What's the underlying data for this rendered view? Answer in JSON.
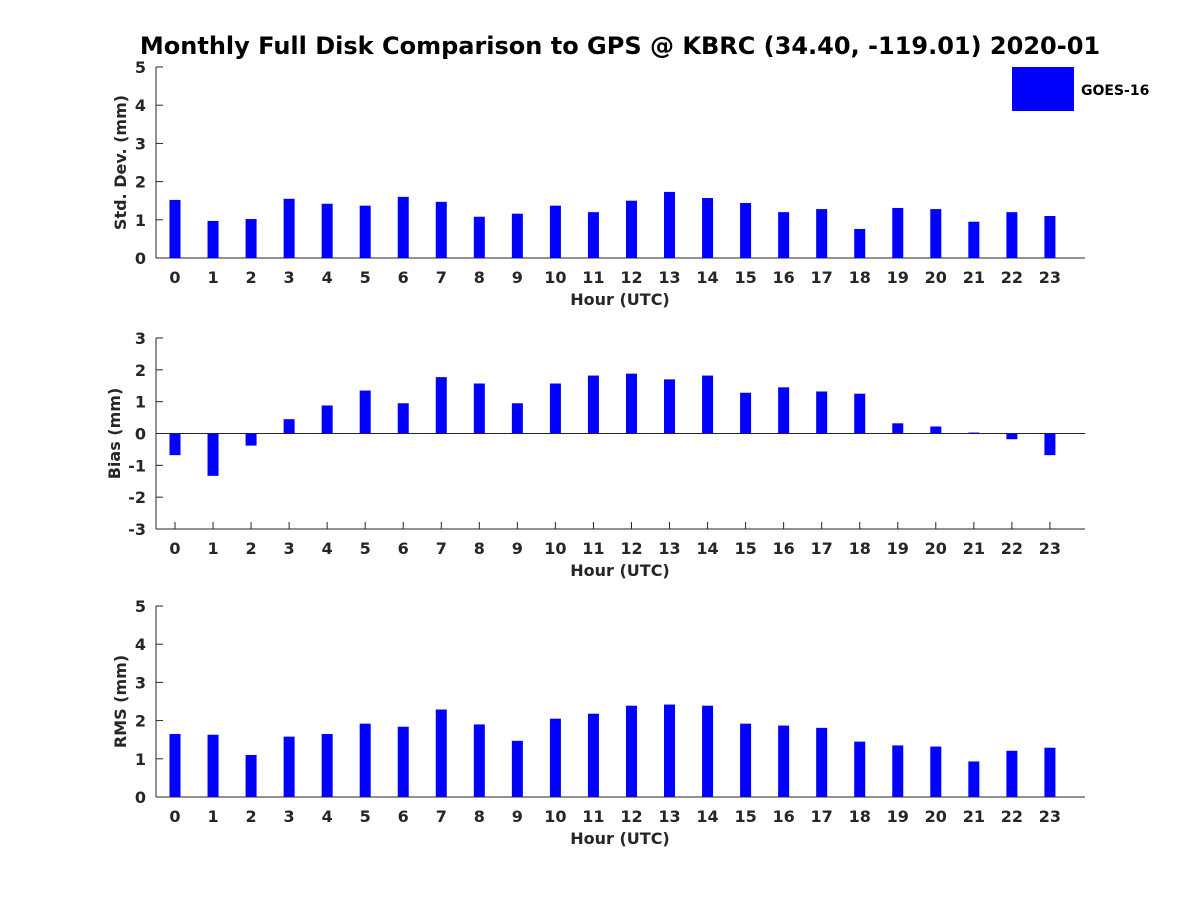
{
  "chart_data": {
    "type": "bar",
    "title": "Monthly Full Disk Comparison to GPS @ KBRC (34.40, -119.01) 2020-01",
    "legend": {
      "label": "GOES-16",
      "color": "#0000ff",
      "placement": "top-right"
    },
    "categories": [
      "0",
      "1",
      "2",
      "3",
      "4",
      "5",
      "6",
      "7",
      "8",
      "9",
      "10",
      "11",
      "12",
      "13",
      "14",
      "15",
      "16",
      "17",
      "18",
      "19",
      "20",
      "21",
      "22",
      "23"
    ],
    "panels": [
      {
        "id": "std",
        "ylabel": "Std. Dev. (mm)",
        "xlabel": "Hour (UTC)",
        "ylim": [
          0,
          5
        ],
        "yticks": [
          "0",
          "1",
          "2",
          "3",
          "4",
          "5"
        ],
        "values": [
          1.52,
          0.97,
          1.02,
          1.55,
          1.42,
          1.37,
          1.6,
          1.47,
          1.08,
          1.16,
          1.37,
          1.2,
          1.5,
          1.73,
          1.57,
          1.44,
          1.2,
          1.28,
          0.76,
          1.31,
          1.28,
          0.95,
          1.2,
          1.1
        ]
      },
      {
        "id": "bias",
        "ylabel": "Bias (mm)",
        "xlabel": "Hour (UTC)",
        "ylim": [
          -3,
          3
        ],
        "yticks": [
          "-3",
          "-2",
          "-1",
          "0",
          "1",
          "2",
          "3"
        ],
        "values": [
          -0.68,
          -1.33,
          -0.38,
          0.45,
          0.88,
          1.35,
          0.95,
          1.77,
          1.57,
          0.95,
          1.57,
          1.82,
          1.88,
          1.7,
          1.82,
          1.28,
          1.45,
          1.32,
          1.25,
          0.32,
          0.22,
          0.03,
          -0.18,
          -0.68
        ]
      },
      {
        "id": "rms",
        "ylabel": "RMS (mm)",
        "xlabel": "Hour (UTC)",
        "ylim": [
          0,
          5
        ],
        "yticks": [
          "0",
          "1",
          "2",
          "3",
          "4",
          "5"
        ],
        "values": [
          1.65,
          1.63,
          1.1,
          1.58,
          1.65,
          1.92,
          1.84,
          2.29,
          1.9,
          1.47,
          2.05,
          2.18,
          2.39,
          2.42,
          2.39,
          1.92,
          1.87,
          1.81,
          1.45,
          1.35,
          1.32,
          0.93,
          1.21,
          1.29
        ]
      }
    ]
  }
}
